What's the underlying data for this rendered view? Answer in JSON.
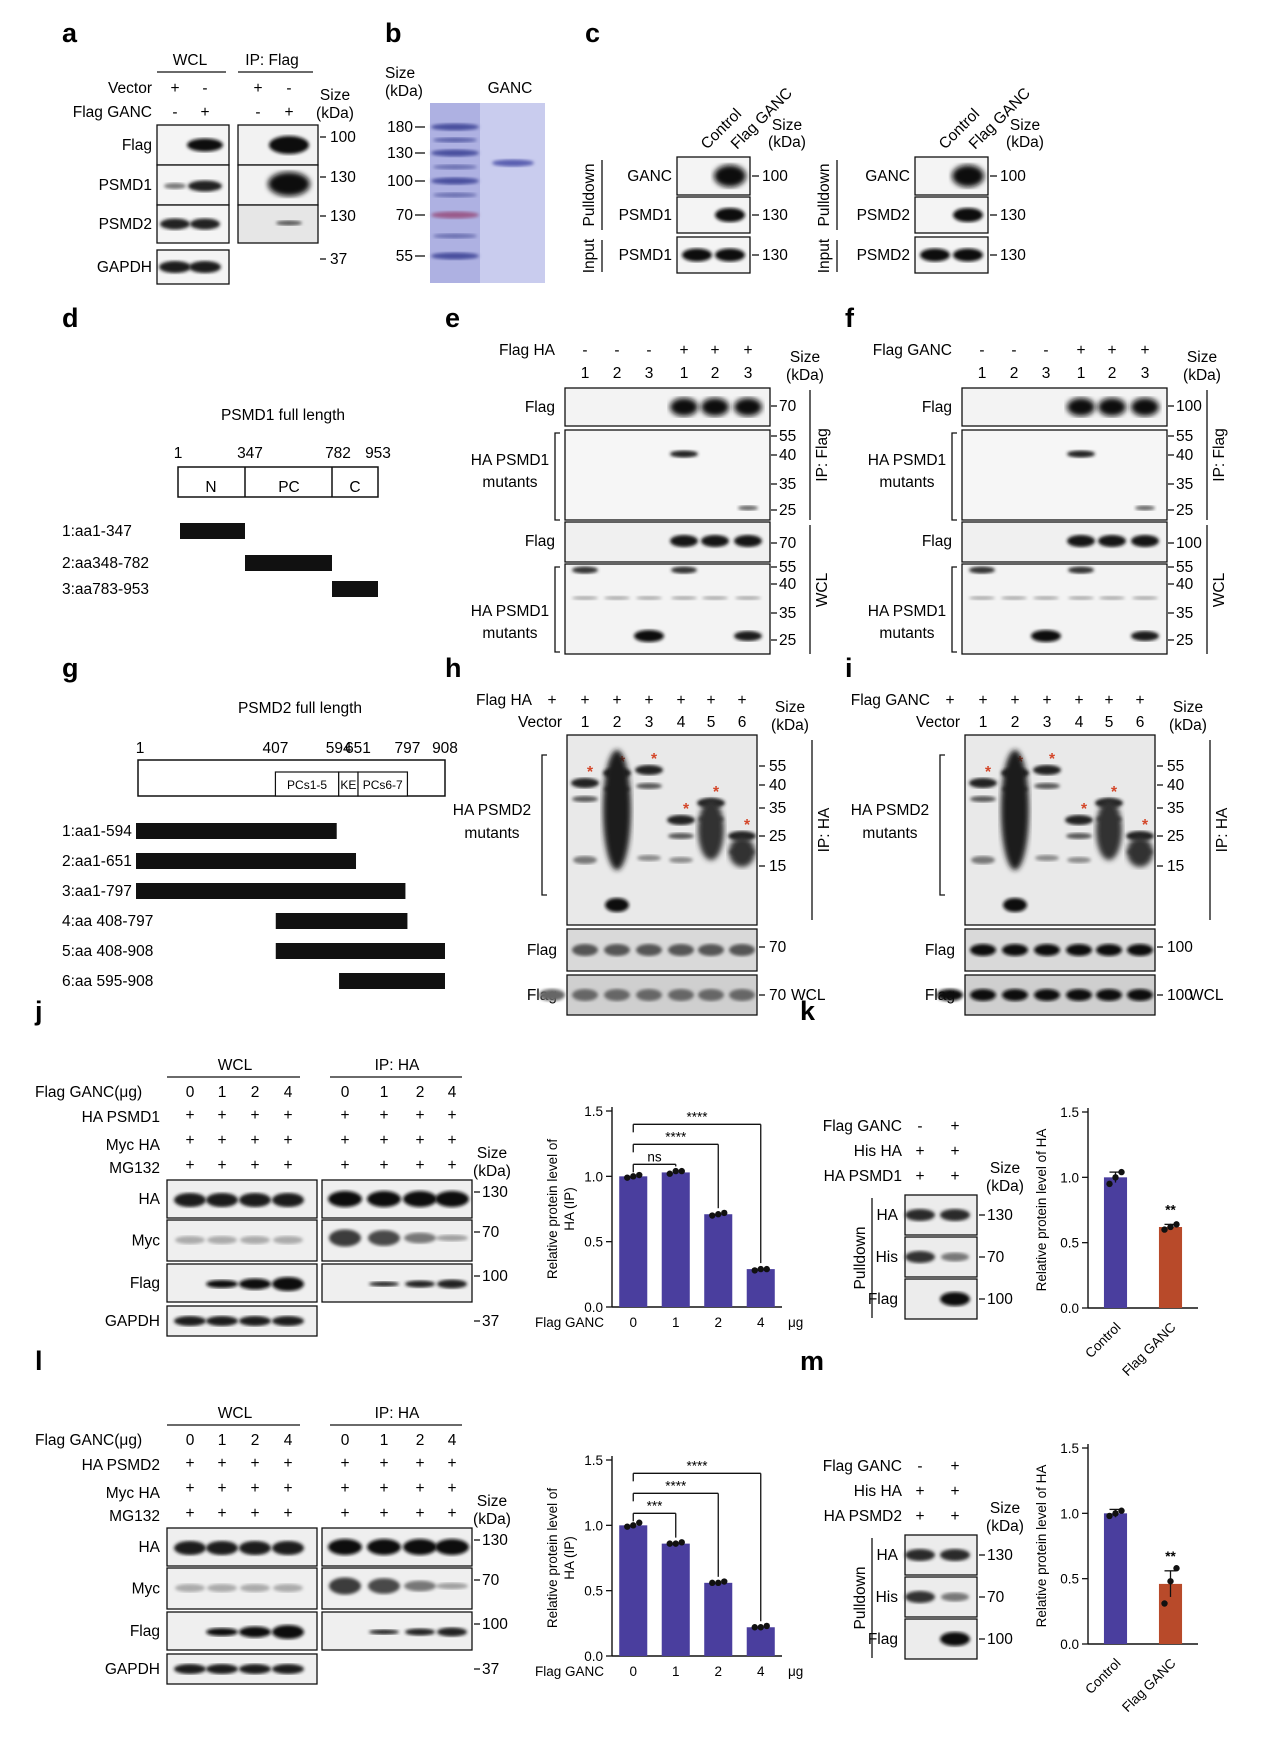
{
  "figure": {
    "panel_labels": [
      "a",
      "b",
      "c",
      "d",
      "e",
      "f",
      "g",
      "h",
      "i",
      "j",
      "k",
      "l",
      "m"
    ]
  },
  "colors": {
    "blue_bar": "#4a3e9e",
    "orange_bar": "#b84a2a",
    "star": "#d4472a",
    "gel_blue": "#7b80c4"
  },
  "a": {
    "wcl": "WCL",
    "ip": "IP: Flag",
    "rows": [
      "Vector",
      "Flag GANC"
    ],
    "signs": [
      [
        "+",
        "-",
        "+",
        "-"
      ],
      [
        "-",
        "+",
        "-",
        "+"
      ]
    ],
    "size": "Size",
    "kda": "(kDa)",
    "blots": [
      "Flag",
      "PSMD1",
      "PSMD2",
      "GAPDH"
    ],
    "markers": [
      "100",
      "130",
      "130",
      "37"
    ]
  },
  "b": {
    "size": "Size",
    "kda": "(kDa)",
    "lane": "GANC",
    "markers": [
      "180",
      "130",
      "100",
      "70",
      "55"
    ]
  },
  "c": {
    "lanes": [
      "Control",
      "Flag GANC"
    ],
    "size": "Size",
    "kda": "(kDa)",
    "pulldown": "Pulldown",
    "input": "Input",
    "left_blots": [
      "GANC",
      "PSMD1",
      "PSMD1"
    ],
    "right_blots": [
      "GANC",
      "PSMD2",
      "PSMD2"
    ],
    "markers": [
      "100",
      "130",
      "130"
    ]
  },
  "d": {
    "title": "PSMD1 full length",
    "positions": [
      "1",
      "347",
      "782",
      "953"
    ],
    "domains": [
      "N",
      "PC",
      "C"
    ],
    "mutants": [
      "1:aa1-347",
      "2:aa348-782",
      "3:aa783-953"
    ]
  },
  "e": {
    "treat": "Flag HA",
    "signs": [
      "-",
      "-",
      "-",
      "+",
      "+",
      "+"
    ],
    "lanes": [
      "1",
      "2",
      "3",
      "1",
      "2",
      "3"
    ],
    "size": "Size",
    "kda": "(kDa)",
    "blot_flag": "Flag",
    "blot_ha_1": "HA PSMD1",
    "blot_ha_2": "mutants",
    "ip": "IP: Flag",
    "wcl": "WCL",
    "markers_top": [
      "70",
      "55",
      "40",
      "35",
      "25"
    ],
    "markers_bot": [
      "70",
      "55",
      "40",
      "35",
      "25"
    ]
  },
  "f": {
    "treat": "Flag GANC",
    "signs": [
      "-",
      "-",
      "-",
      "+",
      "+",
      "+"
    ],
    "lanes": [
      "1",
      "2",
      "3",
      "1",
      "2",
      "3"
    ],
    "size": "Size",
    "kda": "(kDa)",
    "blot_flag": "Flag",
    "blot_ha_1": "HA PSMD1",
    "blot_ha_2": "mutants",
    "ip": "IP: Flag",
    "wcl": "WCL",
    "markers_top": [
      "100",
      "55",
      "40",
      "35",
      "25"
    ],
    "markers_bot": [
      "100",
      "55",
      "40",
      "35",
      "25"
    ]
  },
  "g": {
    "title": "PSMD2 full length",
    "positions": [
      "1",
      "407",
      "594",
      "651",
      "797",
      "908"
    ],
    "domains": [
      "PCs1-5",
      "KE",
      "PCs6-7"
    ],
    "mutants": [
      "1:aa1-594",
      "2:aa1-651",
      "3:aa1-797",
      "4:aa 408-797",
      "5:aa 408-908",
      "6:aa 595-908"
    ]
  },
  "h": {
    "treat": "Flag HA",
    "signs": [
      "+",
      "+",
      "+",
      "+",
      "+",
      "+",
      "+"
    ],
    "vector": "Vector",
    "lanes": [
      "1",
      "2",
      "3",
      "4",
      "5",
      "6"
    ],
    "size": "Size",
    "kda": "(kDa)",
    "blot_ha_1": "HA PSMD2",
    "blot_ha_2": "mutants",
    "blot_flag": "Flag",
    "ip": "IP: HA",
    "wcl": "WCL",
    "markers": [
      "55",
      "40",
      "35",
      "25",
      "15"
    ],
    "flag_markers": [
      "70",
      "70"
    ],
    "star": "*"
  },
  "i": {
    "treat": "Flag GANC",
    "signs": [
      "+",
      "+",
      "+",
      "+",
      "+",
      "+",
      "+"
    ],
    "vector": "Vector",
    "lanes": [
      "1",
      "2",
      "3",
      "4",
      "5",
      "6"
    ],
    "size": "Size",
    "kda": "(kDa)",
    "blot_ha_1": "HA PSMD2",
    "blot_ha_2": "mutants",
    "blot_flag": "Flag",
    "ip": "IP: HA",
    "wcl": "WCL",
    "markers": [
      "55",
      "40",
      "35",
      "25",
      "15"
    ],
    "flag_markers": [
      "100",
      "100"
    ],
    "star": "*"
  },
  "j": {
    "wcl": "WCL",
    "ip": "IP: HA",
    "rows": [
      "Flag GANC(μg)",
      "HA PSMD1",
      "Myc HA",
      "MG132"
    ],
    "doses": [
      "0",
      "1",
      "2",
      "4",
      "0",
      "1",
      "2",
      "4"
    ],
    "plus": "+",
    "size": "Size",
    "kda": "(kDa)",
    "blots": [
      "HA",
      "Myc",
      "Flag",
      "GAPDH"
    ],
    "markers": [
      "130",
      "70",
      "100",
      "37"
    ]
  },
  "k": {
    "wcl": "WCL",
    "ip": "IP: HA",
    "rows": [
      "Flag GANC(μg)",
      "HA PSMD2",
      "Myc HA",
      "MG132"
    ],
    "doses": [
      "0",
      "1",
      "2",
      "4",
      "0",
      "1",
      "2",
      "4"
    ],
    "plus": "+",
    "size": "Size",
    "kda": "(kDa)",
    "blots": [
      "HA",
      "Myc",
      "Flag",
      "GAPDH"
    ],
    "markers": [
      "130",
      "70",
      "100",
      "37"
    ]
  },
  "l": {
    "rows": [
      "Flag GANC",
      "His HA",
      "HA PSMD1"
    ],
    "signs": [
      [
        "-",
        "+"
      ],
      [
        "+",
        "+"
      ],
      [
        "+",
        "+"
      ]
    ],
    "size": "Size",
    "kda": "(kDa)",
    "pulldown": "Pulldown",
    "blots": [
      "HA",
      "His",
      "Flag"
    ],
    "markers": [
      "130",
      "70",
      "100"
    ]
  },
  "m": {
    "rows": [
      "Flag GANC",
      "His HA",
      "HA PSMD2"
    ],
    "signs": [
      [
        "-",
        "+"
      ],
      [
        "+",
        "+"
      ],
      [
        "+",
        "+"
      ]
    ],
    "size": "Size",
    "kda": "(kDa)",
    "pulldown": "Pulldown",
    "blots": [
      "HA",
      "His",
      "Flag"
    ],
    "markers": [
      "130",
      "70",
      "100"
    ]
  },
  "chart_data": [
    {
      "panel": "j",
      "type": "bar",
      "categories": [
        "0",
        "1",
        "2",
        "4"
      ],
      "values": [
        1.0,
        1.03,
        0.71,
        0.29
      ],
      "points": [
        [
          0.99,
          1.0,
          1.01
        ],
        [
          1.02,
          1.04,
          1.04
        ],
        [
          0.7,
          0.71,
          0.72
        ],
        [
          0.28,
          0.29,
          0.29
        ]
      ],
      "xlabel": "Flag GANC",
      "xunit": "μg",
      "ylabel_1": "Relative  protein  level of",
      "ylabel_2": "HA (IP)",
      "ylim": [
        0,
        1.5
      ],
      "yticks": [
        "0.0",
        "0.5",
        "1.0",
        "1.5"
      ],
      "significance": [
        {
          "from": "0",
          "to": "1",
          "label": "ns"
        },
        {
          "from": "0",
          "to": "2",
          "label": "****"
        },
        {
          "from": "0",
          "to": "4",
          "label": "****"
        }
      ]
    },
    {
      "panel": "k",
      "type": "bar",
      "categories": [
        "0",
        "1",
        "2",
        "4"
      ],
      "values": [
        1.0,
        0.86,
        0.56,
        0.22
      ],
      "points": [
        [
          0.99,
          1.0,
          1.02
        ],
        [
          0.86,
          0.86,
          0.87
        ],
        [
          0.56,
          0.56,
          0.57
        ],
        [
          0.22,
          0.22,
          0.23
        ]
      ],
      "xlabel": "Flag GANC",
      "xunit": "μg",
      "ylabel_1": "Relative  protein  level of",
      "ylabel_2": "HA (IP)",
      "ylim": [
        0,
        1.5
      ],
      "yticks": [
        "0.0",
        "0.5",
        "1.0",
        "1.5"
      ],
      "significance": [
        {
          "from": "0",
          "to": "1",
          "label": "***"
        },
        {
          "from": "0",
          "to": "2",
          "label": "****"
        },
        {
          "from": "0",
          "to": "4",
          "label": "****"
        }
      ]
    },
    {
      "panel": "l",
      "type": "bar",
      "categories": [
        "Control",
        "Flag GANC"
      ],
      "values": [
        1.0,
        0.62
      ],
      "errors": [
        0.04,
        0.02
      ],
      "points": [
        [
          0.95,
          1.0,
          1.04
        ],
        [
          0.6,
          0.62,
          0.64
        ]
      ],
      "ylabel": "Relative  protein  level of HA",
      "ylim": [
        0,
        1.5
      ],
      "yticks": [
        "0.0",
        "0.5",
        "1.0",
        "1.5"
      ],
      "significance": [
        {
          "on": "Flag GANC",
          "label": "**"
        }
      ]
    },
    {
      "panel": "m",
      "type": "bar",
      "categories": [
        "Control",
        "Flag GANC"
      ],
      "values": [
        1.0,
        0.46
      ],
      "errors": [
        0.03,
        0.1
      ],
      "points": [
        [
          0.98,
          1.0,
          1.02
        ],
        [
          0.31,
          0.48,
          0.58
        ]
      ],
      "ylabel": "Relative  protein  level of HA",
      "ylim": [
        0,
        1.5
      ],
      "yticks": [
        "0.0",
        "0.5",
        "1.0",
        "1.5"
      ],
      "significance": [
        {
          "on": "Flag GANC",
          "label": "**"
        }
      ]
    }
  ]
}
